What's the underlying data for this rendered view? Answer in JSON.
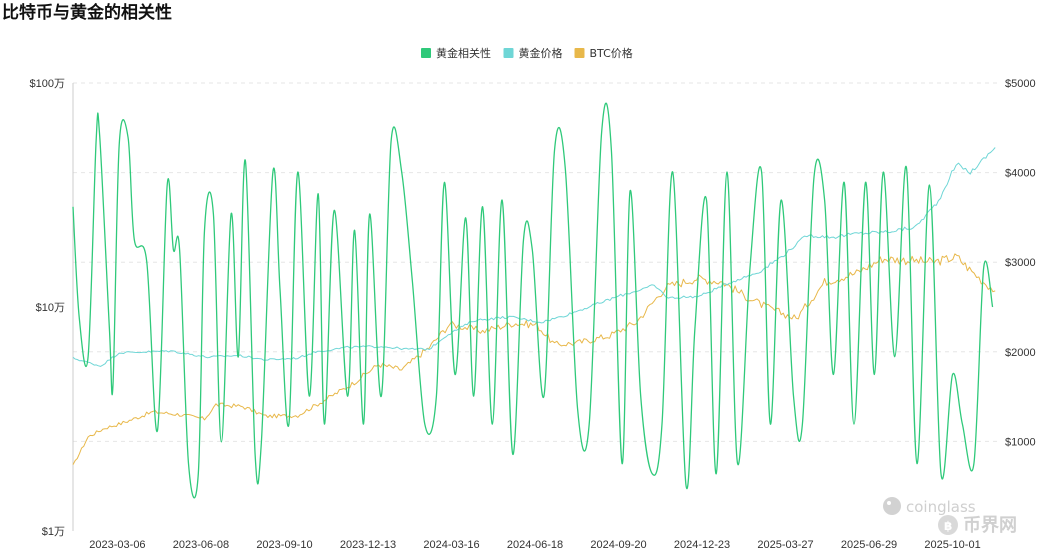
{
  "title": "比特币与黄金的相关性",
  "watermark": {
    "brand1": "coinglass",
    "brand2": "币界网"
  },
  "chart_data": {
    "type": "line",
    "legend": [
      "黄金相关性",
      "黄金价格",
      "BTC价格"
    ],
    "legend_position": "top-center",
    "colors": {
      "correlation": "#2fc97a",
      "gold": "#6fd6d6",
      "btc": "#e8b84a"
    },
    "x_ticks": [
      "2023-03-06",
      "2023-06-08",
      "2023-09-10",
      "2023-12-13",
      "2024-03-16",
      "2024-06-18",
      "2024-09-20",
      "2024-12-23",
      "2025-03-27",
      "2025-06-29",
      "2025-10-01"
    ],
    "x_range": [
      "2023-01-15",
      "2025-11-20"
    ],
    "y_left": {
      "scale": "log",
      "ticks": [
        "$1万",
        "$10万",
        "$100万"
      ],
      "tick_values": [
        10000,
        100000,
        1000000
      ],
      "range": [
        10000,
        1000000
      ]
    },
    "y_right": {
      "scale": "linear",
      "ticks": [
        "$1000",
        "$2000",
        "$3000",
        "$4000",
        "$5000"
      ],
      "tick_values": [
        1000,
        2000,
        3000,
        4000,
        5000
      ],
      "range": [
        0,
        5000
      ]
    },
    "grid": "horizontal dashed",
    "series": [
      {
        "name": "黄金相关性",
        "axis": "left",
        "x": [
          "2023-01-15",
          "2023-01-22",
          "2023-02-01",
          "2023-02-10",
          "2023-02-14",
          "2023-02-25",
          "2023-03-01",
          "2023-03-08",
          "2023-03-18",
          "2023-03-25",
          "2023-04-08",
          "2023-04-20",
          "2023-05-01",
          "2023-05-08",
          "2023-05-15",
          "2023-05-25",
          "2023-06-05",
          "2023-06-12",
          "2023-06-22",
          "2023-07-01",
          "2023-07-12",
          "2023-07-20",
          "2023-07-28",
          "2023-08-08",
          "2023-08-15",
          "2023-08-28",
          "2023-09-05",
          "2023-09-15",
          "2023-09-25",
          "2023-10-08",
          "2023-10-18",
          "2023-10-25",
          "2023-11-05",
          "2023-11-20",
          "2023-11-28",
          "2023-12-08",
          "2023-12-15",
          "2023-12-28",
          "2024-01-08",
          "2024-01-20",
          "2024-02-01",
          "2024-02-15",
          "2024-02-28",
          "2024-03-08",
          "2024-03-20",
          "2024-04-01",
          "2024-04-10",
          "2024-04-20",
          "2024-05-01",
          "2024-05-12",
          "2024-05-24",
          "2024-06-05",
          "2024-06-15",
          "2024-06-28",
          "2024-07-10",
          "2024-07-22",
          "2024-08-05",
          "2024-08-18",
          "2024-09-01",
          "2024-09-12",
          "2024-09-24",
          "2024-10-03",
          "2024-10-15",
          "2024-10-28",
          "2024-11-08",
          "2024-11-20",
          "2024-12-05",
          "2024-12-15",
          "2024-12-28",
          "2025-01-08",
          "2025-01-20",
          "2025-02-01",
          "2025-02-15",
          "2025-02-28",
          "2025-03-10",
          "2025-03-22",
          "2025-04-05",
          "2025-04-15",
          "2025-04-28",
          "2025-05-10",
          "2025-05-20",
          "2025-06-01",
          "2025-06-12",
          "2025-06-25",
          "2025-07-05",
          "2025-07-15",
          "2025-07-28",
          "2025-08-10",
          "2025-08-22",
          "2025-09-05",
          "2025-09-18",
          "2025-10-01",
          "2025-10-12",
          "2025-10-25",
          "2025-11-05",
          "2025-11-15"
        ],
        "values": [
          280000,
          90000,
          60000,
          550000,
          580000,
          80000,
          45000,
          530000,
          570000,
          200000,
          160000,
          28000,
          350000,
          180000,
          180000,
          20000,
          18000,
          220000,
          260000,
          25000,
          260000,
          60000,
          450000,
          22000,
          25000,
          400000,
          120000,
          30000,
          400000,
          40000,
          320000,
          30000,
          270000,
          40000,
          220000,
          30000,
          260000,
          40000,
          550000,
          400000,
          130000,
          30000,
          40000,
          360000,
          50000,
          250000,
          40000,
          280000,
          30000,
          300000,
          22000,
          200000,
          180000,
          40000,
          500000,
          420000,
          35000,
          30000,
          600000,
          500000,
          20000,
          330000,
          40000,
          18000,
          30000,
          400000,
          16000,
          80000,
          300000,
          18000,
          400000,
          20000,
          150000,
          400000,
          30000,
          300000,
          40000,
          30000,
          380000,
          300000,
          50000,
          360000,
          30000,
          360000,
          50000,
          400000,
          60000,
          420000,
          20000,
          350000,
          18000,
          50000,
          30000,
          20000,
          150000,
          100000
        ]
      },
      {
        "name": "黄金价格",
        "axis": "right",
        "x": [
          "2023-01-15",
          "2023-02-15",
          "2023-03-08",
          "2023-04-10",
          "2023-05-05",
          "2023-06-15",
          "2023-07-20",
          "2023-08-20",
          "2023-09-25",
          "2023-10-15",
          "2023-11-20",
          "2023-12-28",
          "2024-01-25",
          "2024-02-20",
          "2024-03-10",
          "2024-04-10",
          "2024-05-20",
          "2024-06-25",
          "2024-07-20",
          "2024-08-20",
          "2024-09-20",
          "2024-10-30",
          "2024-11-15",
          "2024-12-20",
          "2025-01-25",
          "2025-02-25",
          "2025-03-25",
          "2025-04-20",
          "2025-05-20",
          "2025-06-15",
          "2025-07-20",
          "2025-08-20",
          "2025-09-15",
          "2025-10-05",
          "2025-10-21",
          "2025-11-10",
          "2025-11-18"
        ],
        "values": [
          1930,
          1840,
          1990,
          2000,
          2010,
          1940,
          1960,
          1910,
          1930,
          2000,
          2050,
          2060,
          2030,
          2030,
          2180,
          2350,
          2390,
          2330,
          2400,
          2510,
          2620,
          2740,
          2600,
          2620,
          2780,
          2890,
          3080,
          3300,
          3280,
          3320,
          3340,
          3390,
          3680,
          4100,
          4000,
          4200,
          4280
        ]
      },
      {
        "name": "BTC价格",
        "axis": "right",
        "x": [
          "2023-01-15",
          "2023-02-01",
          "2023-02-20",
          "2023-03-10",
          "2023-04-15",
          "2023-05-15",
          "2023-06-12",
          "2023-06-25",
          "2023-07-25",
          "2023-08-20",
          "2023-09-25",
          "2023-10-25",
          "2023-11-25",
          "2023-12-25",
          "2024-01-20",
          "2024-02-20",
          "2024-03-14",
          "2024-04-20",
          "2024-05-25",
          "2024-06-20",
          "2024-07-10",
          "2024-08-05",
          "2024-09-10",
          "2024-10-10",
          "2024-11-12",
          "2024-12-17",
          "2025-01-15",
          "2025-02-10",
          "2025-03-05",
          "2025-04-08",
          "2025-05-10",
          "2025-06-15",
          "2025-07-14",
          "2025-08-14",
          "2025-09-10",
          "2025-10-06",
          "2025-10-20",
          "2025-11-05",
          "2025-11-18"
        ],
        "values": [
          730,
          1050,
          1150,
          1200,
          1330,
          1300,
          1250,
          1410,
          1390,
          1280,
          1290,
          1460,
          1640,
          1860,
          1800,
          2050,
          2310,
          2230,
          2320,
          2300,
          2080,
          2100,
          2180,
          2330,
          2720,
          2820,
          2780,
          2620,
          2500,
          2370,
          2780,
          2880,
          3040,
          3020,
          3000,
          3060,
          2920,
          2780,
          2680
        ]
      }
    ]
  }
}
